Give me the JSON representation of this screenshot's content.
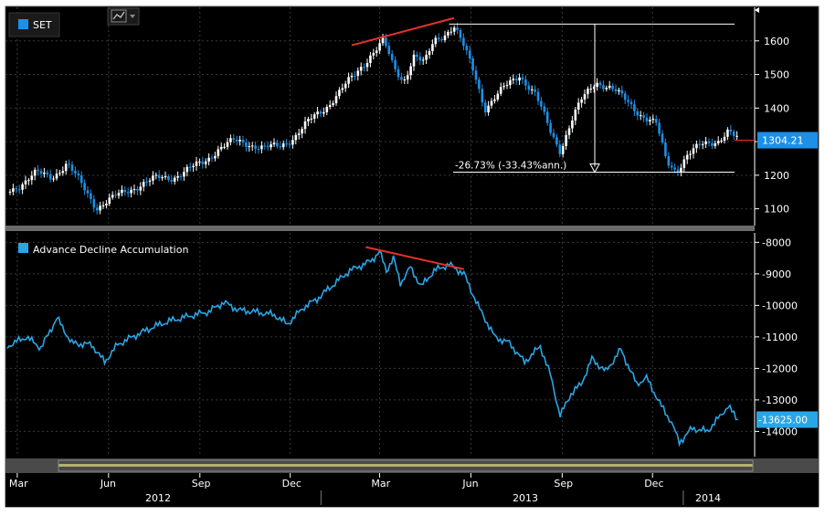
{
  "colors": {
    "background": "#000000",
    "grid": "#3a3a3a",
    "up_candle": "#ffffff",
    "down_candle": "#1e8fe6",
    "ad_line": "#2aa6e6",
    "trend_line": "#e8302c",
    "last_price_badge": "#1e8fe6",
    "last_price_tick": "#e8302c",
    "legend_set": "#1e8fe6",
    "legend_ad": "#2aa6e6",
    "axis_text": "#ffffff"
  },
  "toolbar": {
    "chart_type_icon": "line-chart-icon",
    "dropdown_icon": "chevron-down-icon"
  },
  "time_axis": {
    "month_labels": [
      "Mar",
      "Jun",
      "Sep",
      "Dec",
      "Mar",
      "Jun",
      "Sep",
      "Dec"
    ],
    "year_labels": [
      "2012",
      "2013",
      "2014"
    ]
  },
  "chart_data": [
    {
      "type": "candlestick",
      "legend": "SET",
      "y_ticks": [
        1100,
        1200,
        1300,
        1400,
        1500,
        1600
      ],
      "ylim": [
        1050,
        1700
      ],
      "last_value_label": "1304.21",
      "last_value": 1304.21,
      "annotation": {
        "label": "-26.73% (-33.43%ann.)",
        "from_value": 1650,
        "to_value": 1209
      },
      "series_closes": [
        [
          "2012-02-20",
          1150
        ],
        [
          "2012-03-05",
          1175
        ],
        [
          "2012-03-20",
          1205
        ],
        [
          "2012-04-05",
          1195
        ],
        [
          "2012-04-20",
          1235
        ],
        [
          "2012-05-05",
          1170
        ],
        [
          "2012-05-20",
          1105
        ],
        [
          "2012-06-05",
          1130
        ],
        [
          "2012-06-20",
          1155
        ],
        [
          "2012-07-05",
          1175
        ],
        [
          "2012-07-20",
          1190
        ],
        [
          "2012-08-05",
          1195
        ],
        [
          "2012-08-20",
          1215
        ],
        [
          "2012-09-05",
          1240
        ],
        [
          "2012-09-20",
          1280
        ],
        [
          "2012-10-05",
          1300
        ],
        [
          "2012-10-20",
          1295
        ],
        [
          "2012-11-05",
          1280
        ],
        [
          "2012-11-20",
          1285
        ],
        [
          "2012-12-05",
          1315
        ],
        [
          "2012-12-20",
          1360
        ],
        [
          "2013-01-05",
          1400
        ],
        [
          "2013-01-20",
          1450
        ],
        [
          "2013-02-05",
          1500
        ],
        [
          "2013-02-20",
          1560
        ],
        [
          "2013-03-05",
          1600
        ],
        [
          "2013-03-15",
          1520
        ],
        [
          "2013-03-25",
          1480
        ],
        [
          "2013-04-05",
          1560
        ],
        [
          "2013-04-15",
          1530
        ],
        [
          "2013-04-25",
          1600
        ],
        [
          "2013-05-05",
          1620
        ],
        [
          "2013-05-15",
          1645
        ],
        [
          "2013-05-25",
          1580
        ],
        [
          "2013-06-05",
          1500
        ],
        [
          "2013-06-15",
          1400
        ],
        [
          "2013-06-25",
          1430
        ],
        [
          "2013-07-05",
          1460
        ],
        [
          "2013-07-20",
          1500
        ],
        [
          "2013-08-05",
          1440
        ],
        [
          "2013-08-20",
          1330
        ],
        [
          "2013-08-30",
          1275
        ],
        [
          "2013-09-10",
          1360
        ],
        [
          "2013-09-20",
          1420
        ],
        [
          "2013-10-05",
          1480
        ],
        [
          "2013-10-20",
          1460
        ],
        [
          "2013-11-05",
          1420
        ],
        [
          "2013-11-20",
          1380
        ],
        [
          "2013-12-05",
          1350
        ],
        [
          "2013-12-15",
          1240
        ],
        [
          "2013-12-25",
          1215
        ],
        [
          "2014-01-05",
          1260
        ],
        [
          "2014-01-20",
          1290
        ],
        [
          "2014-02-05",
          1305
        ],
        [
          "2014-02-15",
          1330
        ],
        [
          "2014-02-25",
          1304.21
        ]
      ],
      "trend_line": [
        [
          "2013-02-01",
          1587
        ],
        [
          "2013-05-15",
          1668
        ]
      ],
      "high_reference": 1650,
      "low_reference": 1209
    },
    {
      "type": "line",
      "legend": "Advance Decline Accumulation",
      "y_ticks": [
        -14000,
        -13000,
        -12000,
        -11000,
        -10000,
        -9000,
        -8000
      ],
      "ylim": [
        -14800,
        -7700
      ],
      "last_value_label": "-13625.00",
      "last_value": -13625,
      "series": [
        [
          "2012-02-20",
          -11300
        ],
        [
          "2012-03-10",
          -11000
        ],
        [
          "2012-03-25",
          -11350
        ],
        [
          "2012-04-10",
          -10400
        ],
        [
          "2012-04-25",
          -11200
        ],
        [
          "2012-05-15",
          -11250
        ],
        [
          "2012-05-28",
          -11800
        ],
        [
          "2012-06-10",
          -11250
        ],
        [
          "2012-06-25",
          -11000
        ],
        [
          "2012-07-15",
          -10700
        ],
        [
          "2012-08-01",
          -10500
        ],
        [
          "2012-08-20",
          -10350
        ],
        [
          "2012-09-10",
          -10200
        ],
        [
          "2012-09-25",
          -9900
        ],
        [
          "2012-10-10",
          -10150
        ],
        [
          "2012-10-25",
          -10200
        ],
        [
          "2012-11-15",
          -10300
        ],
        [
          "2012-11-28",
          -10600
        ],
        [
          "2012-12-15",
          -10050
        ],
        [
          "2012-12-28",
          -9800
        ],
        [
          "2013-01-15",
          -9300
        ],
        [
          "2013-01-30",
          -8900
        ],
        [
          "2013-02-20",
          -8600
        ],
        [
          "2013-03-01",
          -8300
        ],
        [
          "2013-03-08",
          -8900
        ],
        [
          "2013-03-15",
          -8500
        ],
        [
          "2013-03-22",
          -9300
        ],
        [
          "2013-04-01",
          -8800
        ],
        [
          "2013-04-12",
          -9400
        ],
        [
          "2013-04-25",
          -8900
        ],
        [
          "2013-05-10",
          -8700
        ],
        [
          "2013-05-25",
          -9000
        ],
        [
          "2013-06-08",
          -10000
        ],
        [
          "2013-06-25",
          -11000
        ],
        [
          "2013-07-10",
          -11200
        ],
        [
          "2013-07-25",
          -11800
        ],
        [
          "2013-08-10",
          -11300
        ],
        [
          "2013-08-20",
          -12200
        ],
        [
          "2013-08-30",
          -13500
        ],
        [
          "2013-09-10",
          -12800
        ],
        [
          "2013-09-20",
          -12500
        ],
        [
          "2013-10-01",
          -11700
        ],
        [
          "2013-10-15",
          -12100
        ],
        [
          "2013-10-30",
          -11400
        ],
        [
          "2013-11-15",
          -12500
        ],
        [
          "2013-11-25",
          -12300
        ],
        [
          "2013-12-10",
          -13200
        ],
        [
          "2013-12-20",
          -13700
        ],
        [
          "2013-12-28",
          -14350
        ],
        [
          "2014-01-10",
          -13900
        ],
        [
          "2014-01-25",
          -14000
        ],
        [
          "2014-02-05",
          -13600
        ],
        [
          "2014-02-15",
          -13200
        ],
        [
          "2014-02-25",
          -13625
        ]
      ],
      "trend_line": [
        [
          "2013-02-15",
          -8150
        ],
        [
          "2013-05-25",
          -8850
        ]
      ]
    }
  ]
}
